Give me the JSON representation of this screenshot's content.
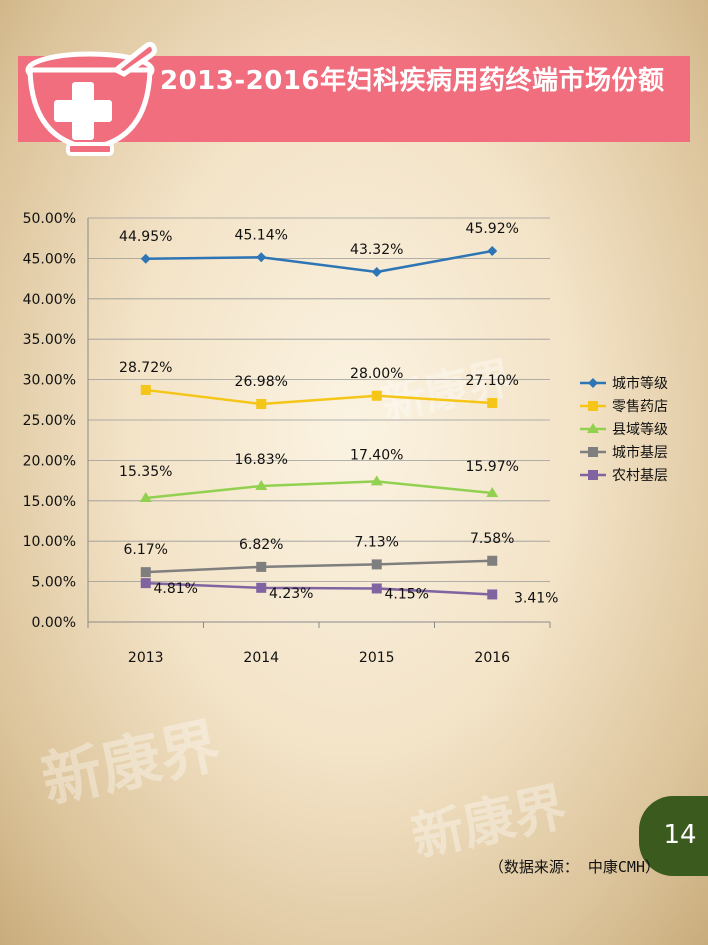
{
  "header": {
    "title": "2013-2016年妇科疾病用药终端市场份额"
  },
  "colors": {
    "banner": "#f06e7e",
    "page_badge": "#3a5a1e"
  },
  "watermark": "新康界",
  "page_number": "14",
  "source": "（数据来源： 中康CMH）",
  "chart_data": {
    "type": "line",
    "title": "",
    "xlabel": "",
    "ylabel": "",
    "categories": [
      "2013",
      "2014",
      "2015",
      "2016"
    ],
    "ylim": [
      0,
      50
    ],
    "y_ticks": [
      "0.00%",
      "5.00%",
      "10.00%",
      "15.00%",
      "20.00%",
      "25.00%",
      "30.00%",
      "35.00%",
      "40.00%",
      "45.00%",
      "50.00%"
    ],
    "grid": true,
    "legend_position": "right",
    "series": [
      {
        "name": "城市等级",
        "color": "#2e75b6",
        "marker": "diamond",
        "values": [
          44.95,
          45.14,
          43.32,
          45.92
        ],
        "labels": [
          "44.95%",
          "45.14%",
          "43.32%",
          "45.92%"
        ]
      },
      {
        "name": "零售药店",
        "color": "#f5c518",
        "marker": "square",
        "values": [
          28.72,
          26.98,
          28.0,
          27.1
        ],
        "labels": [
          "28.72%",
          "26.98%",
          "28.00%",
          "27.10%"
        ]
      },
      {
        "name": "县域等级",
        "color": "#92d050",
        "marker": "triangle",
        "values": [
          15.35,
          16.83,
          17.4,
          15.97
        ],
        "labels": [
          "15.35%",
          "16.83%",
          "17.40%",
          "15.97%"
        ]
      },
      {
        "name": "城市基层",
        "color": "#7f7f7f",
        "marker": "square",
        "values": [
          6.17,
          6.82,
          7.13,
          7.58
        ],
        "labels": [
          "6.17%",
          "6.82%",
          "7.13%",
          "7.58%"
        ]
      },
      {
        "name": "农村基层",
        "color": "#8064a2",
        "marker": "square",
        "values": [
          4.81,
          4.23,
          4.15,
          3.41
        ],
        "labels": [
          "4.81%",
          "4.23%",
          "4.15%",
          "3.41%"
        ]
      }
    ]
  }
}
